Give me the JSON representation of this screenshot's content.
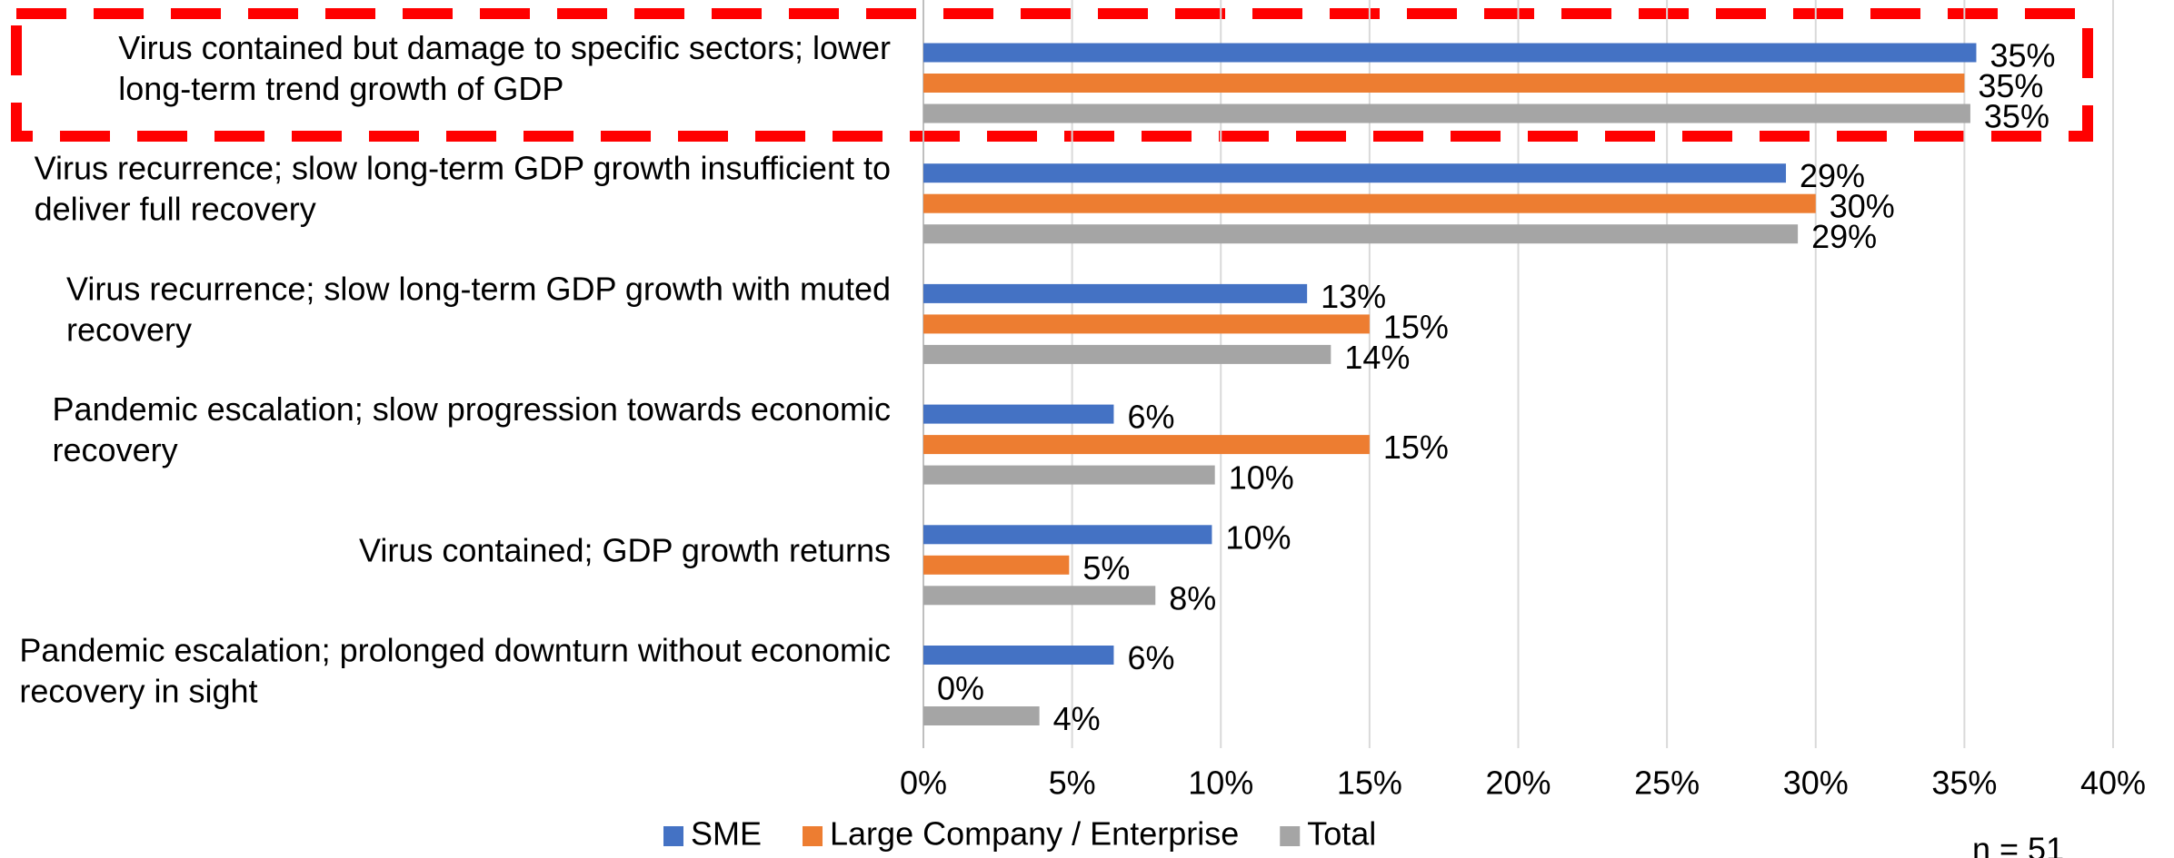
{
  "chart_data": {
    "type": "bar",
    "orientation": "horizontal",
    "categories": [
      "Virus contained but damage to specific sectors; lower long-term trend growth of GDP",
      "Virus recurrence; slow long-term GDP growth insufficient to deliver full recovery",
      "Virus recurrence; slow long-term GDP growth with muted recovery",
      "Pandemic escalation; slow progression towards economic recovery",
      "Virus contained; GDP growth returns",
      "Pandemic escalation; prolonged downturn without economic recovery in sight"
    ],
    "series": [
      {
        "name": "SME",
        "color": "#4472c4",
        "values": [
          35.4,
          29.0,
          12.9,
          6.4,
          9.7,
          6.4
        ],
        "value_labels": [
          "35%",
          "29%",
          "13%",
          "6%",
          "10%",
          "6%"
        ]
      },
      {
        "name": "Large Company / Enterprise",
        "color": "#ed7d31",
        "values": [
          35.0,
          30.0,
          15.0,
          15.0,
          4.9,
          0
        ],
        "value_labels": [
          "35%",
          "30%",
          "15%",
          "15%",
          "5%",
          "0%"
        ]
      },
      {
        "name": "Total",
        "color": "#a5a5a5",
        "values": [
          35.2,
          29.4,
          13.7,
          9.8,
          7.8,
          3.9
        ],
        "value_labels": [
          "35%",
          "29%",
          "14%",
          "10%",
          "8%",
          "4%"
        ]
      }
    ],
    "xlim": [
      0,
      40
    ],
    "xticks": [
      {
        "value": 0,
        "label": "0%"
      },
      {
        "value": 5,
        "label": "5%"
      },
      {
        "value": 10,
        "label": "10%"
      },
      {
        "value": 15,
        "label": "15%"
      },
      {
        "value": 20,
        "label": "20%"
      },
      {
        "value": 25,
        "label": "25%"
      },
      {
        "value": 30,
        "label": "30%"
      },
      {
        "value": 35,
        "label": "35%"
      },
      {
        "value": 40,
        "label": "40%"
      }
    ],
    "grid": true,
    "legend": "bottom",
    "annotation": "n = 51"
  }
}
